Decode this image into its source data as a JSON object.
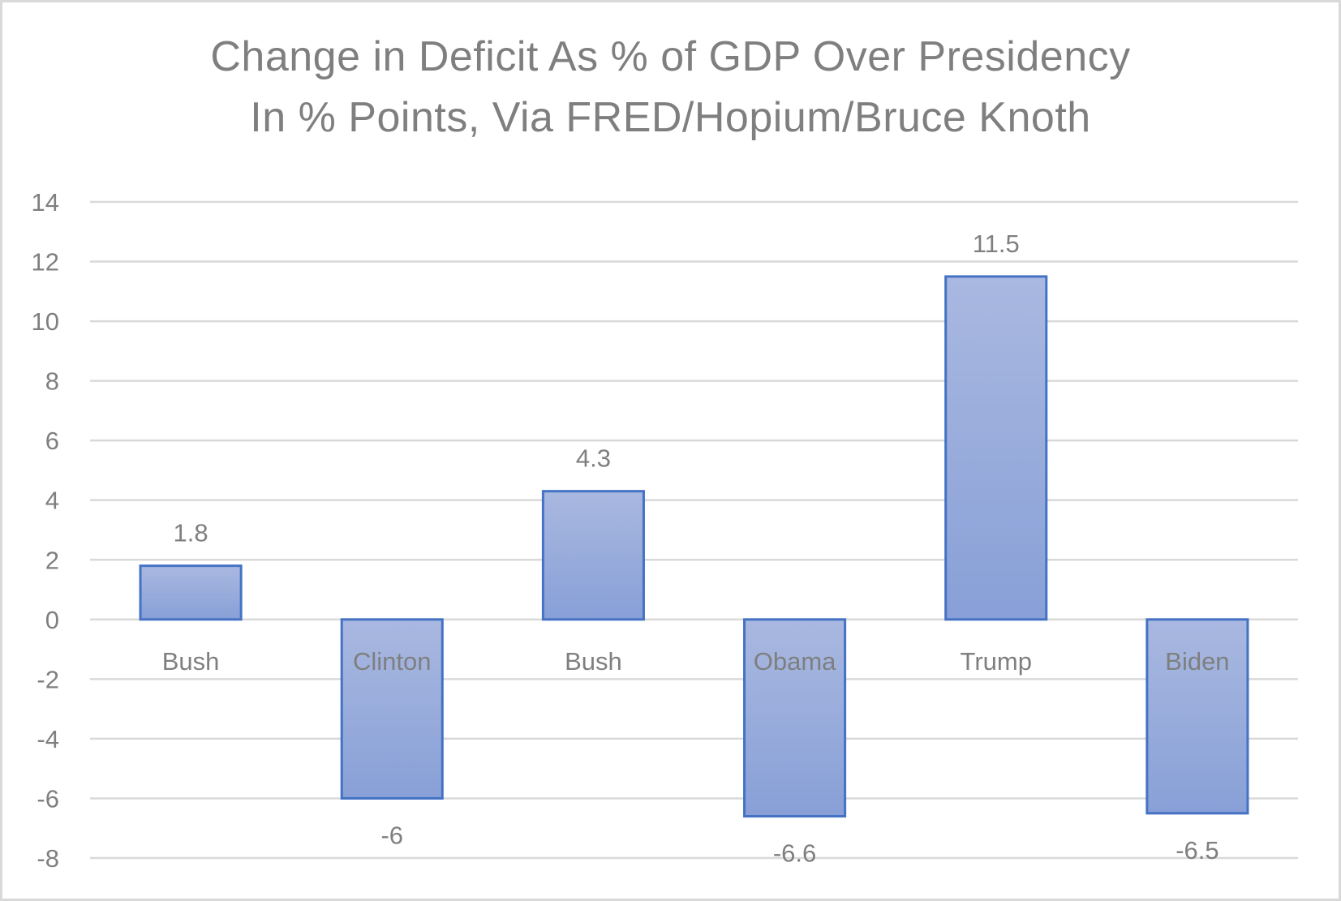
{
  "chart_data": {
    "type": "bar",
    "title": "Change in Deficit As % of GDP Over Presidency",
    "subtitle": "In % Points, Via FRED/Hopium/Bruce Knoth",
    "title_lines": [
      "Change in Deficit As % of GDP Over Presidency",
      "In % Points, Via FRED/Hopium/Bruce Knoth"
    ],
    "xlabel": "",
    "ylabel": "",
    "categories": [
      "Bush",
      "Clinton",
      "Bush",
      "Obama",
      "Trump",
      "Biden"
    ],
    "values": [
      1.8,
      -6,
      4.3,
      -6.6,
      11.5,
      -6.5
    ],
    "data_labels": [
      "1.8",
      "-6",
      "4.3",
      "-6.6",
      "11.5",
      "-6.5"
    ],
    "ylim": [
      -8,
      14
    ],
    "yticks": [
      14,
      12,
      10,
      8,
      6,
      4,
      2,
      0,
      -2,
      -4,
      -6,
      -8
    ],
    "ytick_labels": [
      "14",
      "12",
      "10",
      "8",
      "6",
      "4",
      "2",
      "0",
      "-2",
      "-4",
      "-6",
      "-8"
    ],
    "grid": true,
    "legend": "none",
    "colors": {
      "bar_fill_top": "#a9b8e0",
      "bar_fill_bottom": "#88a0d7",
      "bar_border": "#4472c4",
      "text": "#7f7f7f",
      "gridline": "#d9d9d9",
      "frame_border": "#d9d9d9"
    }
  }
}
